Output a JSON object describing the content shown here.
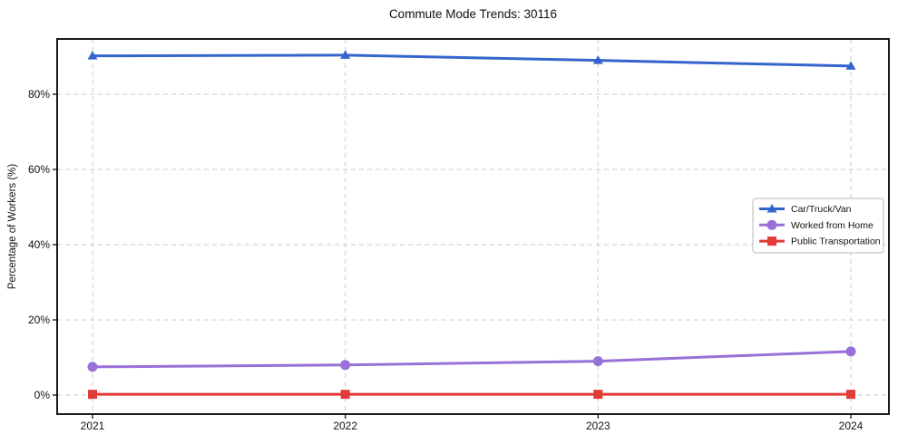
{
  "chart_data": {
    "type": "line",
    "title": "Commute Mode Trends: 30116",
    "xlabel": "",
    "ylabel": "Percentage of Workers (%)",
    "categories": [
      "2021",
      "2022",
      "2023",
      "2024"
    ],
    "y_ticks": [
      0,
      20,
      40,
      60,
      80
    ],
    "y_tick_suffix": "%",
    "ylim": [
      -5,
      95
    ],
    "grid": "dashed",
    "legend_position": "middle-right",
    "series": [
      {
        "name": "Car/Truck/Van",
        "color": "#3465cd",
        "marker": "triangle",
        "values": [
          90.2,
          90.4,
          89.0,
          87.5
        ]
      },
      {
        "name": "Worked from Home",
        "color": "#9770d8",
        "marker": "circle",
        "values": [
          7.5,
          8.0,
          9.0,
          11.6
        ]
      },
      {
        "name": "Public Transportation",
        "color": "#e23b38",
        "marker": "square",
        "values": [
          0.2,
          0.2,
          0.2,
          0.2
        ]
      }
    ]
  },
  "style_colors": {
    "grid": "#cccccc",
    "spine": "#000000",
    "tick_text": "#111111",
    "legend_border": "#b9b9b9",
    "legend_bg": "#ffffff"
  }
}
